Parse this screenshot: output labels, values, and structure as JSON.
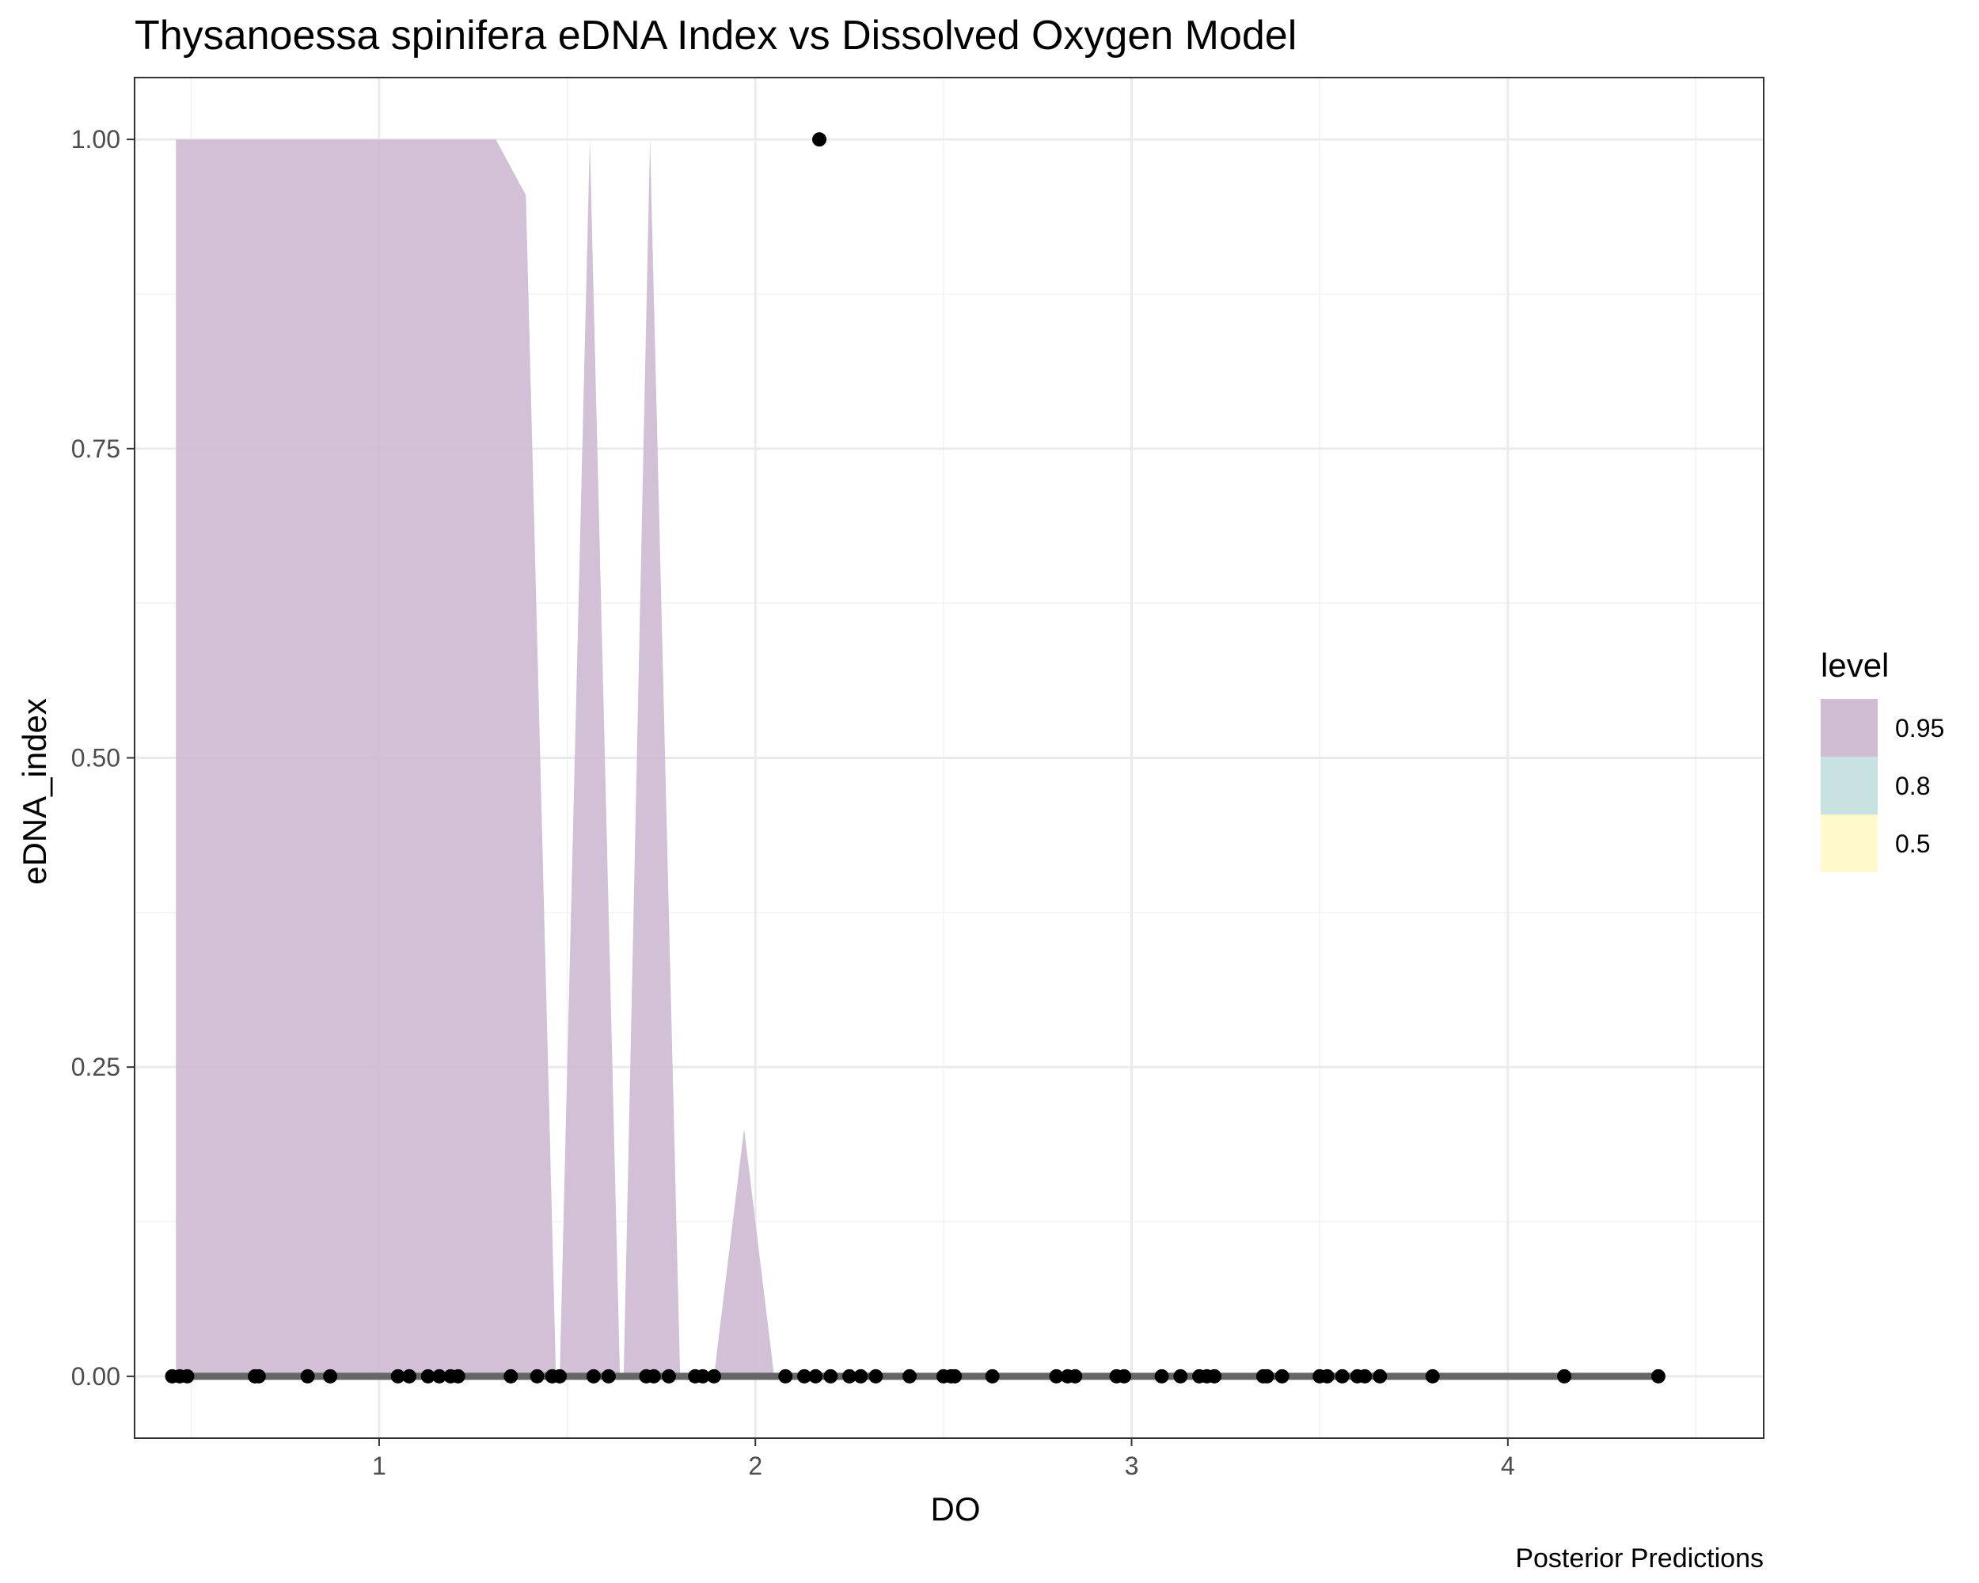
{
  "chart_data": {
    "type": "area",
    "title": "Thysanoessa spinifera eDNA Index vs Dissolved Oxygen Model",
    "caption": "Posterior Predictions",
    "xlabel": "DO",
    "ylabel": "eDNA_index",
    "xlim": [
      0.35,
      4.68
    ],
    "ylim": [
      -0.05,
      1.05
    ],
    "x_ticks": [
      1,
      2,
      3,
      4
    ],
    "x_tick_labels": [
      "1",
      "2",
      "3",
      "4"
    ],
    "y_ticks": [
      0,
      0.25,
      0.5,
      0.75,
      1
    ],
    "y_tick_labels": [
      "0.00",
      "0.25",
      "0.50",
      "0.75",
      "1.00"
    ],
    "grid": true,
    "legend": {
      "title": "level",
      "position": "right",
      "entries": [
        {
          "label": "0.95",
          "color": "#D0BDD4"
        },
        {
          "label": "0.8",
          "color": "#C8E2E2"
        },
        {
          "label": "0.5",
          "color": "#FFF9CC"
        }
      ]
    },
    "ribbon_095": {
      "x": [
        0.46,
        0.46,
        1.31,
        1.39,
        1.47,
        1.48,
        1.56,
        1.64,
        1.65,
        1.72,
        1.8,
        1.89,
        1.97,
        2.05
      ],
      "upper": [
        0,
        1.0,
        1.0,
        0.955,
        0.0,
        0.0,
        1.0,
        0.0,
        0.0,
        1.0,
        0.0,
        0.0,
        0.2,
        0.0
      ]
    },
    "median_line": {
      "x": [
        0.46,
        4.39
      ],
      "y": [
        0,
        0
      ],
      "color": "#666666"
    },
    "points": {
      "x": [
        0.45,
        0.47,
        0.49,
        0.67,
        0.68,
        0.81,
        0.87,
        1.05,
        1.08,
        1.13,
        1.16,
        1.19,
        1.21,
        1.35,
        1.42,
        1.46,
        1.48,
        1.57,
        1.61,
        1.71,
        1.73,
        1.77,
        1.84,
        1.86,
        1.89,
        2.08,
        2.13,
        2.16,
        2.2,
        2.25,
        2.28,
        2.32,
        2.41,
        2.5,
        2.52,
        2.53,
        2.63,
        2.8,
        2.83,
        2.85,
        2.96,
        2.98,
        3.08,
        3.13,
        3.18,
        3.2,
        3.22,
        3.35,
        3.36,
        3.4,
        3.5,
        3.52,
        3.56,
        3.6,
        3.62,
        3.66,
        3.8,
        4.15,
        4.4,
        2.17
      ],
      "y": [
        0,
        0,
        0,
        0,
        0,
        0,
        0,
        0,
        0,
        0,
        0,
        0,
        0,
        0,
        0,
        0,
        0,
        0,
        0,
        0,
        0,
        0,
        0,
        0,
        0,
        0,
        0,
        0,
        0,
        0,
        0,
        0,
        0,
        0,
        0,
        0,
        0,
        0,
        0,
        0,
        0,
        0,
        0,
        0,
        0,
        0,
        0,
        0,
        0,
        0,
        0,
        0,
        0,
        0,
        0,
        0,
        0,
        0,
        0,
        1
      ]
    }
  }
}
